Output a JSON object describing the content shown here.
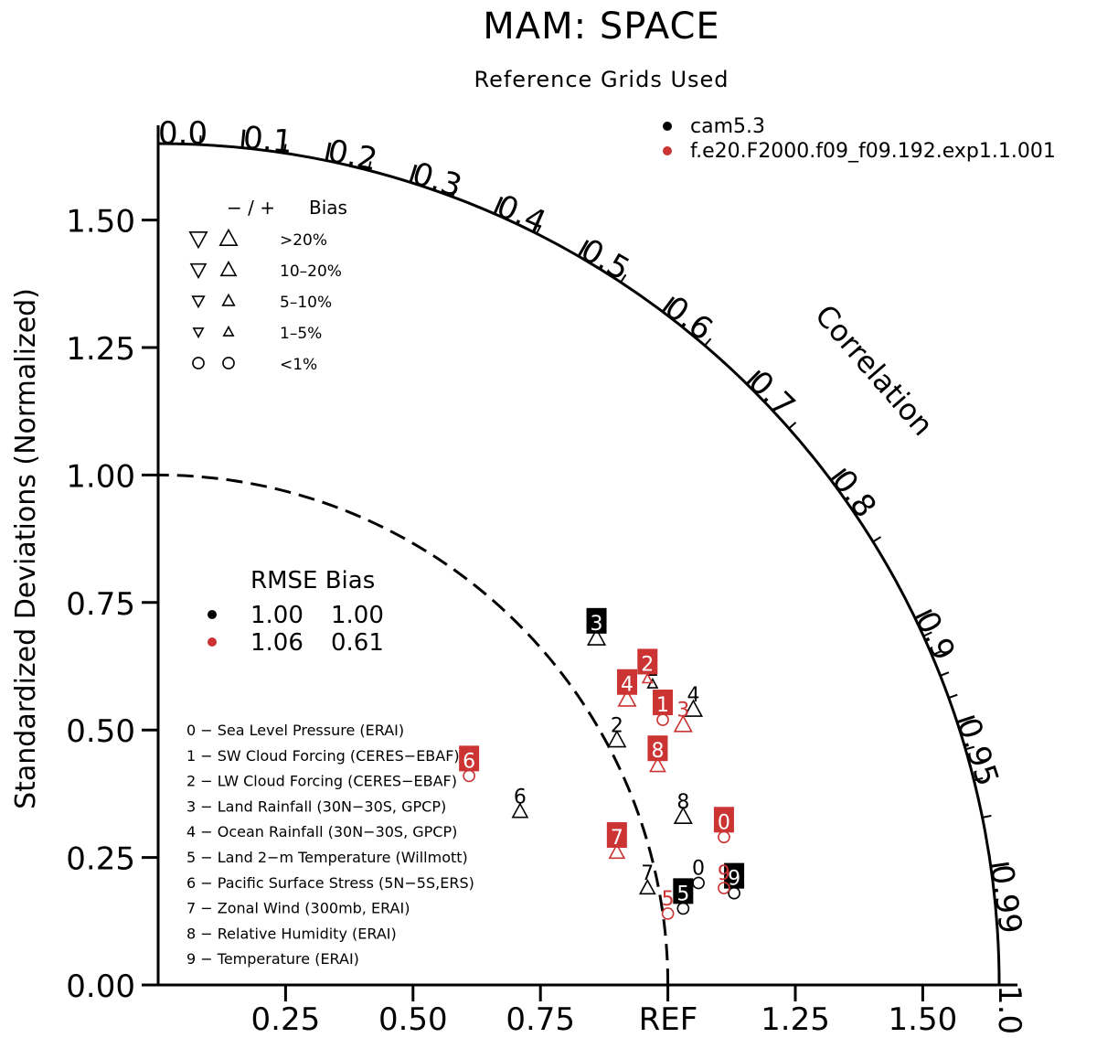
{
  "colors": {
    "cam": "#000000",
    "exp": "#cc3333"
  },
  "chart_data": {
    "type": "scatter",
    "title": "MAM: SPACE",
    "subtitle": "Reference Grids Used",
    "ylabel": "Standardized Deviations (Normalized)",
    "corr_label": "Correlation",
    "ref_label": "REF",
    "ylim": [
      0,
      1.65
    ],
    "xlim": [
      0,
      1.65
    ],
    "y_ticks": [
      "0.00",
      "0.25",
      "0.50",
      "0.75",
      "1.00",
      "1.25",
      "1.50"
    ],
    "x_ticks": [
      "0.25",
      "0.50",
      "0.75",
      "1.25",
      "1.50"
    ],
    "corr_ticks": [
      "0.0",
      "0.1",
      "0.2",
      "0.3",
      "0.4",
      "0.5",
      "0.6",
      "0.7",
      "0.8",
      "0.9",
      "0.95",
      "0.99",
      "1.0"
    ],
    "legend_series": [
      {
        "name": "cam5.3",
        "color": "#000000"
      },
      {
        "name": "f.e20.F2000.f09_f09.192.exp1.1.001",
        "color": "#cc3333"
      }
    ],
    "bias_legend": {
      "header_signs": "− / +",
      "header_label": "Bias",
      "rows": [
        ">20%",
        "10–20%",
        "5–10%",
        "1–5%",
        "<1%"
      ]
    },
    "rmse_table": {
      "header": "RMSE Bias",
      "rows": [
        {
          "rmse": "1.00",
          "bias": "1.00",
          "color": "#000000"
        },
        {
          "rmse": "1.06",
          "bias": "0.61",
          "color": "#cc3333"
        }
      ]
    },
    "variables": [
      "0 − Sea Level Pressure (ERAI)",
      "1 − SW Cloud Forcing (CERES−EBAF)",
      "2 − LW Cloud Forcing (CERES−EBAF)",
      "3 − Land Rainfall (30N−30S, GPCP)",
      "4 − Ocean Rainfall (30N−30S, GPCP)",
      "5 − Land 2−m Temperature (Willmott)",
      "6 − Pacific Surface Stress (5N−5S,ERS)",
      "7 − Zonal Wind (300mb, ERAI)",
      "8 − Relative Humidity (ERAI)",
      "9 − Temperature (ERAI)"
    ],
    "series": [
      {
        "name": "cam5.3",
        "color": "#000000",
        "points": [
          {
            "label": "0",
            "x": 1.06,
            "y": 0.2,
            "marker": "circle",
            "size": "<1%",
            "boxed": false
          },
          {
            "label": "1",
            "x": 0.97,
            "y": 0.59,
            "marker": "up",
            "size": "1-5%",
            "boxed": false
          },
          {
            "label": "2",
            "x": 0.9,
            "y": 0.48,
            "marker": "up",
            "size": ">20%",
            "boxed": false
          },
          {
            "label": "3",
            "x": 0.86,
            "y": 0.68,
            "marker": "up",
            "size": ">20%",
            "boxed": true
          },
          {
            "label": "4",
            "x": 1.05,
            "y": 0.54,
            "marker": "up",
            "size": ">20%",
            "boxed": false
          },
          {
            "label": "5",
            "x": 1.03,
            "y": 0.15,
            "marker": "circle",
            "size": "<1%",
            "boxed": true
          },
          {
            "label": "6",
            "x": 0.71,
            "y": 0.34,
            "marker": "up",
            "size": "10-20%",
            "boxed": false
          },
          {
            "label": "7",
            "x": 0.96,
            "y": 0.19,
            "marker": "up",
            "size": "10-20%",
            "boxed": false
          },
          {
            "label": "8",
            "x": 1.03,
            "y": 0.33,
            "marker": "up",
            "size": ">20%",
            "boxed": false
          },
          {
            "label": "9",
            "x": 1.13,
            "y": 0.18,
            "marker": "circle",
            "size": "<1%",
            "boxed": true
          }
        ]
      },
      {
        "name": "f.e20.F2000.f09_f09.192.exp1.1.001",
        "color": "#cc3333",
        "points": [
          {
            "label": "0",
            "x": 1.11,
            "y": 0.29,
            "marker": "circle",
            "size": "<1%",
            "boxed": true
          },
          {
            "label": "1",
            "x": 0.99,
            "y": 0.52,
            "marker": "circle",
            "size": "<1%",
            "boxed": true
          },
          {
            "label": "2",
            "x": 0.96,
            "y": 0.6,
            "marker": "up",
            "size": "1-5%",
            "boxed": true
          },
          {
            "label": "3",
            "x": 1.03,
            "y": 0.51,
            "marker": "up",
            "size": ">20%",
            "boxed": false
          },
          {
            "label": "4",
            "x": 0.92,
            "y": 0.56,
            "marker": "up",
            "size": ">20%",
            "boxed": true
          },
          {
            "label": "5",
            "x": 1.0,
            "y": 0.14,
            "marker": "circle",
            "size": "<1%",
            "boxed": false
          },
          {
            "label": "6",
            "x": 0.61,
            "y": 0.41,
            "marker": "circle",
            "size": "<1%",
            "boxed": true
          },
          {
            "label": "7",
            "x": 0.9,
            "y": 0.26,
            "marker": "up",
            "size": "10-20%",
            "boxed": true
          },
          {
            "label": "8",
            "x": 0.98,
            "y": 0.43,
            "marker": "up",
            "size": "10-20%",
            "boxed": true
          },
          {
            "label": "9",
            "x": 1.11,
            "y": 0.19,
            "marker": "circle",
            "size": "<1%",
            "boxed": false
          }
        ]
      }
    ]
  }
}
